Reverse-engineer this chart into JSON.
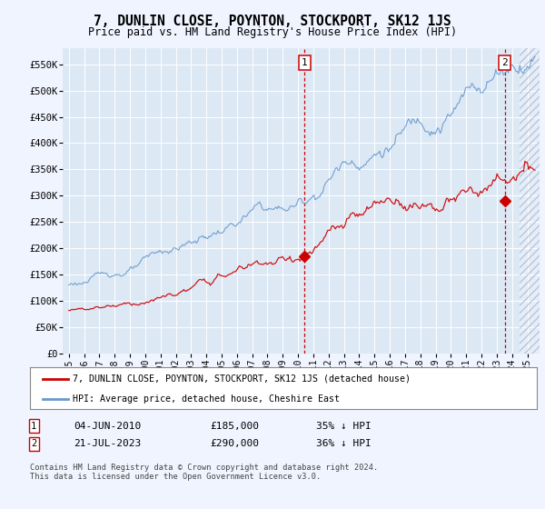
{
  "title": "7, DUNLIN CLOSE, POYNTON, STOCKPORT, SK12 1JS",
  "subtitle": "Price paid vs. HM Land Registry's House Price Index (HPI)",
  "ylim": [
    0,
    580000
  ],
  "yticks": [
    0,
    50000,
    100000,
    150000,
    200000,
    250000,
    300000,
    350000,
    400000,
    450000,
    500000,
    550000
  ],
  "ytick_labels": [
    "£0",
    "£50K",
    "£100K",
    "£150K",
    "£200K",
    "£250K",
    "£300K",
    "£350K",
    "£400K",
    "£450K",
    "£500K",
    "£550K"
  ],
  "xlim_start": 1994.6,
  "xlim_end": 2025.8,
  "xticks": [
    1995,
    1996,
    1997,
    1998,
    1999,
    2000,
    2001,
    2002,
    2003,
    2004,
    2005,
    2006,
    2007,
    2008,
    2009,
    2010,
    2011,
    2012,
    2013,
    2014,
    2015,
    2016,
    2017,
    2018,
    2019,
    2020,
    2021,
    2022,
    2023,
    2024,
    2025
  ],
  "bg_color": "#f0f4ff",
  "plot_bg_color": "#dde8f5",
  "grid_color": "#c8d4e8",
  "red_line_color": "#cc0000",
  "blue_line_color": "#6699cc",
  "vline_color": "#cc0000",
  "marker1_x": 2010.42,
  "marker1_y": 185000,
  "marker2_x": 2023.54,
  "marker2_y": 290000,
  "legend_red_label": "7, DUNLIN CLOSE, POYNTON, STOCKPORT, SK12 1JS (detached house)",
  "legend_blue_label": "HPI: Average price, detached house, Cheshire East",
  "annotation1_num": "1",
  "annotation1_date": "04-JUN-2010",
  "annotation1_price": "£185,000",
  "annotation1_pct": "35% ↓ HPI",
  "annotation2_num": "2",
  "annotation2_date": "21-JUL-2023",
  "annotation2_price": "£290,000",
  "annotation2_pct": "36% ↓ HPI",
  "copyright_text": "Contains HM Land Registry data © Crown copyright and database right 2024.\nThis data is licensed under the Open Government Licence v3.0.",
  "hatch_start": 2024.5
}
